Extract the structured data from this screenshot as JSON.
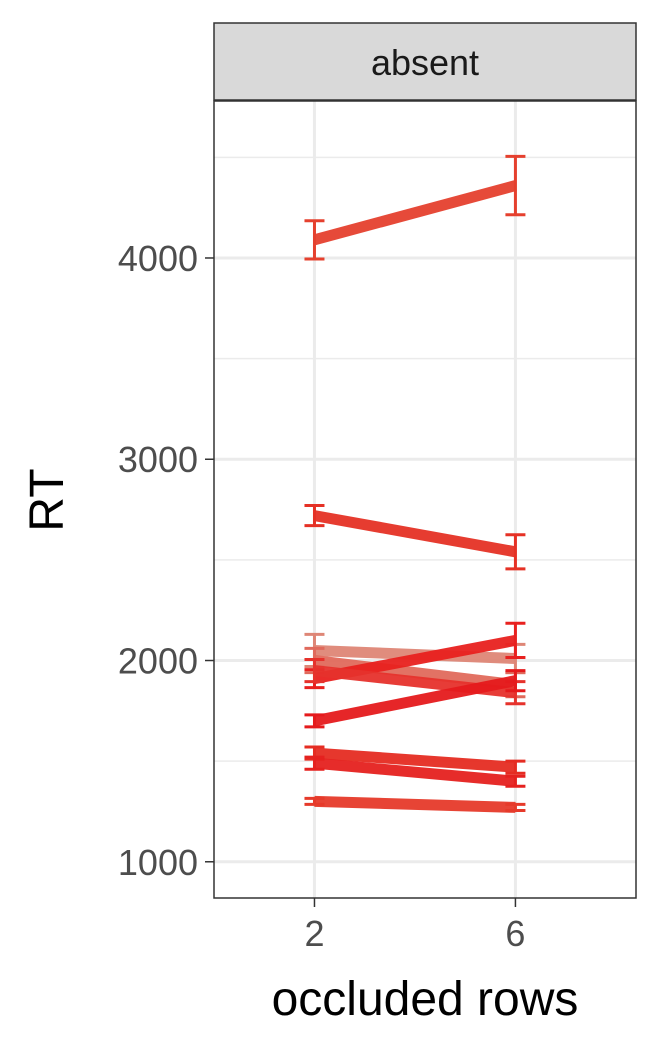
{
  "chart_data": {
    "type": "line",
    "facet": "absent",
    "xlabel": "occluded rows",
    "ylabel": "RT",
    "x": [
      2,
      6
    ],
    "xticks": [
      2,
      6
    ],
    "xlim": [
      0,
      8.4
    ],
    "yticks": [
      1000,
      2000,
      3000,
      4000
    ],
    "ylim": [
      820,
      4780
    ],
    "grid": true,
    "legend": "none",
    "series": [
      {
        "values": [
          4090,
          4360
        ],
        "errors": [
          95,
          145
        ],
        "color": "#e5402e"
      },
      {
        "values": [
          2720,
          2540
        ],
        "errors": [
          50,
          85
        ],
        "color": "#e53125"
      },
      {
        "values": [
          2050,
          2010
        ],
        "errors": [
          80,
          70
        ],
        "color": "#de8676"
      },
      {
        "values": [
          2000,
          1880
        ],
        "errors": [
          60,
          60
        ],
        "color": "#e06a5c"
      },
      {
        "values": [
          1910,
          2100
        ],
        "errors": [
          45,
          85
        ],
        "color": "#e8211f"
      },
      {
        "values": [
          1950,
          1840
        ],
        "errors": [
          55,
          55
        ],
        "color": "#e6322c"
      },
      {
        "values": [
          1700,
          1900
        ],
        "errors": [
          30,
          50
        ],
        "color": "#e51a1c"
      },
      {
        "values": [
          1540,
          1470
        ],
        "errors": [
          30,
          30
        ],
        "color": "#e52c22"
      },
      {
        "values": [
          1490,
          1400
        ],
        "errors": [
          30,
          25
        ],
        "color": "#e5211f"
      },
      {
        "values": [
          1300,
          1270
        ],
        "errors": [
          15,
          15
        ],
        "color": "#e63a2a"
      }
    ]
  }
}
